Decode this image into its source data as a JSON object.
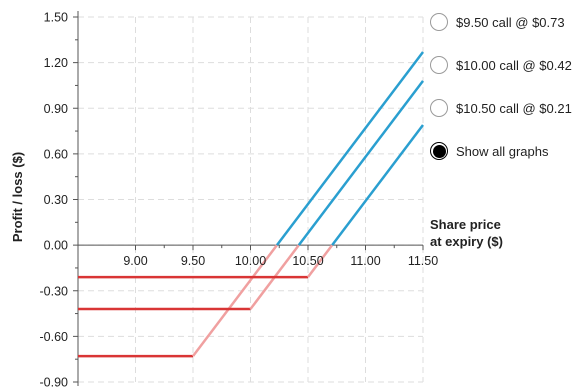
{
  "chart_data": {
    "type": "line",
    "title": "",
    "xlabel": "Share price at expiry ($)",
    "xlabel_lines": [
      "Share price",
      "at expiry ($)"
    ],
    "ylabel": "Profit / loss ($)",
    "xlim": [
      8.5,
      11.5
    ],
    "ylim": [
      -0.9,
      1.5
    ],
    "x_ticks": [
      "9.00",
      "9.50",
      "10.00",
      "10.50",
      "11.00",
      "11.50"
    ],
    "x_tick_values": [
      9.0,
      9.5,
      10.0,
      10.5,
      11.0,
      11.5
    ],
    "y_ticks": [
      "1.50",
      "1.20",
      "0.90",
      "0.60",
      "0.30",
      "0.00",
      "-0.30",
      "-0.60",
      "-0.90"
    ],
    "y_tick_values": [
      1.5,
      1.2,
      0.9,
      0.6,
      0.3,
      0.0,
      -0.3,
      -0.6,
      -0.9
    ],
    "grid": true,
    "legend_position": "right",
    "colors": {
      "loss": "#d93535",
      "transition": "#f0a0a0",
      "profit": "#2a9fd0",
      "grid": "#dddddd",
      "axis": "#555555"
    },
    "series": [
      {
        "name": "$9.50 call @ $0.73",
        "strike": 9.5,
        "premium": 0.73,
        "points": [
          [
            8.5,
            -0.73
          ],
          [
            9.5,
            -0.73
          ],
          [
            10.23,
            0.0
          ],
          [
            11.5,
            1.27
          ]
        ]
      },
      {
        "name": "$10.00 call @ $0.42",
        "strike": 10.0,
        "premium": 0.42,
        "points": [
          [
            8.5,
            -0.42
          ],
          [
            10.0,
            -0.42
          ],
          [
            10.42,
            0.0
          ],
          [
            11.5,
            1.08
          ]
        ]
      },
      {
        "name": "$10.50 call @ $0.21",
        "strike": 10.5,
        "premium": 0.21,
        "points": [
          [
            8.5,
            -0.21
          ],
          [
            10.5,
            -0.21
          ],
          [
            10.71,
            0.0
          ],
          [
            11.5,
            0.79
          ]
        ]
      }
    ]
  },
  "legend": {
    "options": [
      {
        "label": "$9.50 call @ $0.73",
        "selected": false
      },
      {
        "label": "$10.00 call @ $0.42",
        "selected": false
      },
      {
        "label": "$10.50 call @ $0.21",
        "selected": false
      },
      {
        "label": "Show all graphs",
        "selected": true
      }
    ]
  }
}
